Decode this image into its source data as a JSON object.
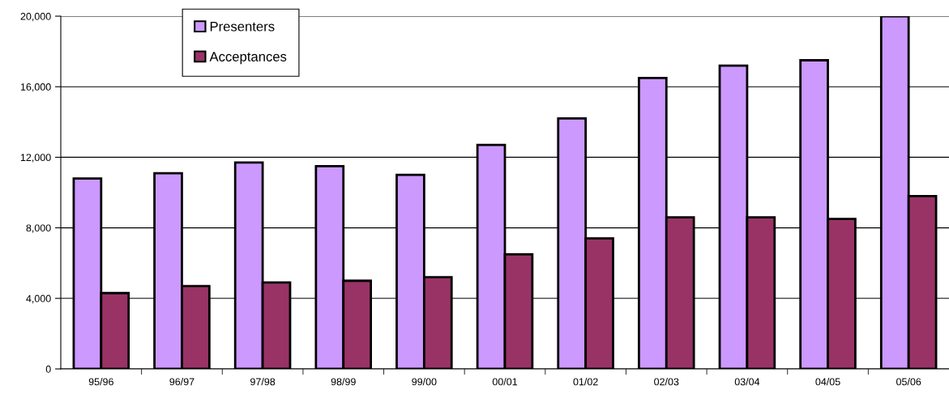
{
  "chart_data": {
    "type": "bar",
    "categories": [
      "95/96",
      "96/97",
      "97/98",
      "98/99",
      "99/00",
      "00/01",
      "01/02",
      "02/03",
      "03/04",
      "04/05",
      "05/06"
    ],
    "series": [
      {
        "name": "Presenters",
        "color": "#cc99ff",
        "values": [
          10800,
          11100,
          11700,
          11500,
          11000,
          12700,
          14200,
          16500,
          17200,
          17500,
          20000
        ]
      },
      {
        "name": "Acceptances",
        "color": "#993366",
        "values": [
          4300,
          4700,
          4900,
          5000,
          5200,
          6500,
          7400,
          8600,
          8600,
          8500,
          9800
        ]
      }
    ],
    "ylim": [
      0,
      20000
    ],
    "yticks": [
      {
        "value": 0,
        "label": "0"
      },
      {
        "value": 4000,
        "label": "4,000"
      },
      {
        "value": 8000,
        "label": "8,000"
      },
      {
        "value": 12000,
        "label": "12,000"
      },
      {
        "value": 16000,
        "label": "16,000"
      },
      {
        "value": 20000,
        "label": "20,000"
      }
    ],
    "grid": "y",
    "legend": "top left"
  }
}
